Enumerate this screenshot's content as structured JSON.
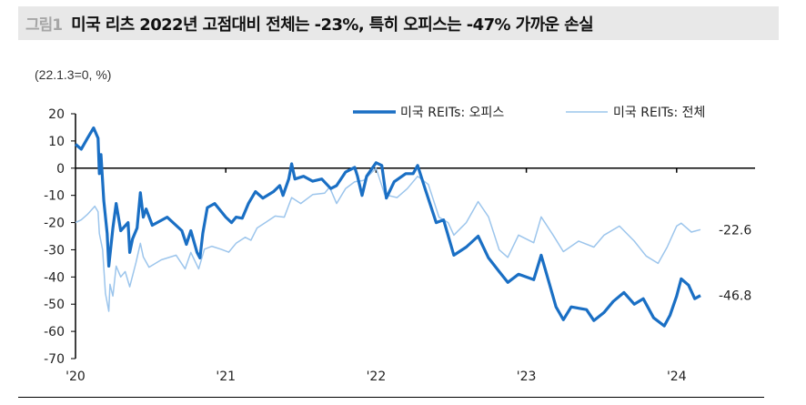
{
  "header": {
    "figure_label": "그림1",
    "title": "미국 리츠 2022년 고점대비 전체는 -23%, 특히 오피스는 -47% 가까운 손실"
  },
  "chart_data": {
    "type": "line",
    "unit_label": "(22.1.3=0,  %)",
    "ylim": [
      -70,
      20
    ],
    "yticks": [
      "20",
      "10",
      "0",
      "-10",
      "-20",
      "-30",
      "-40",
      "-50",
      "-60",
      "-70"
    ],
    "xlim": [
      "2020-01-01",
      "2024-09-15"
    ],
    "xticks": [
      {
        "date": "2020-01-01",
        "label": "'20"
      },
      {
        "date": "2021-01-01",
        "label": "'21"
      },
      {
        "date": "2022-01-01",
        "label": "'22"
      },
      {
        "date": "2023-01-01",
        "label": "'23"
      },
      {
        "date": "2024-01-01",
        "label": "'24"
      }
    ],
    "grid": false,
    "legend_position": "top-right",
    "series": [
      {
        "name": "미국 REITs: 오피스",
        "color": "#1a6fc4",
        "end_label": "-46.8",
        "points": [
          [
            "2020-01-01",
            8.8
          ],
          [
            "2020-01-15",
            7
          ],
          [
            "2020-01-30",
            11
          ],
          [
            "2020-02-14",
            14.8
          ],
          [
            "2020-02-25",
            11
          ],
          [
            "2020-02-28",
            -2
          ],
          [
            "2020-03-03",
            5
          ],
          [
            "2020-03-10",
            -12
          ],
          [
            "2020-03-18",
            -24
          ],
          [
            "2020-03-22",
            -36
          ],
          [
            "2020-04-01",
            -22
          ],
          [
            "2020-04-09",
            -13
          ],
          [
            "2020-04-20",
            -23
          ],
          [
            "2020-05-08",
            -20
          ],
          [
            "2020-05-12",
            -31
          ],
          [
            "2020-05-19",
            -26
          ],
          [
            "2020-05-30",
            -22
          ],
          [
            "2020-06-07",
            -9
          ],
          [
            "2020-06-14",
            -18
          ],
          [
            "2020-06-21",
            -15
          ],
          [
            "2020-07-06",
            -21
          ],
          [
            "2020-08-11",
            -18
          ],
          [
            "2020-09-16",
            -23
          ],
          [
            "2020-09-27",
            -28
          ],
          [
            "2020-10-08",
            -23
          ],
          [
            "2020-10-23",
            -31
          ],
          [
            "2020-10-30",
            -33
          ],
          [
            "2020-11-06",
            -24
          ],
          [
            "2020-11-17",
            -14.5
          ],
          [
            "2020-12-05",
            -13
          ],
          [
            "2021-01-01",
            -18
          ],
          [
            "2021-01-15",
            -20
          ],
          [
            "2021-01-26",
            -18
          ],
          [
            "2021-02-10",
            -18.4
          ],
          [
            "2021-02-25",
            -13
          ],
          [
            "2021-03-14",
            -8.6
          ],
          [
            "2021-04-01",
            -11
          ],
          [
            "2021-04-27",
            -8.6
          ],
          [
            "2021-05-12",
            -6.4
          ],
          [
            "2021-05-20",
            -10
          ],
          [
            "2021-06-03",
            -4
          ],
          [
            "2021-06-10",
            1.6
          ],
          [
            "2021-06-18",
            -4
          ],
          [
            "2021-07-09",
            -3
          ],
          [
            "2021-07-31",
            -4.8
          ],
          [
            "2021-08-22",
            -4
          ],
          [
            "2021-09-13",
            -7.5
          ],
          [
            "2021-09-27",
            -6.4
          ],
          [
            "2021-10-19",
            -1.4
          ],
          [
            "2021-11-10",
            0.3
          ],
          [
            "2021-11-17",
            -3
          ],
          [
            "2021-11-28",
            -10
          ],
          [
            "2021-12-09",
            -3
          ],
          [
            "2022-01-01",
            2
          ],
          [
            "2022-01-15",
            1
          ],
          [
            "2022-01-26",
            -11
          ],
          [
            "2022-02-14",
            -5
          ],
          [
            "2022-03-14",
            -2
          ],
          [
            "2022-04-01",
            -2
          ],
          [
            "2022-04-12",
            1
          ],
          [
            "2022-05-01",
            -8
          ],
          [
            "2022-05-27",
            -20
          ],
          [
            "2022-06-14",
            -19
          ],
          [
            "2022-07-09",
            -32
          ],
          [
            "2022-08-08",
            -29
          ],
          [
            "2022-09-06",
            -25
          ],
          [
            "2022-10-01",
            -33
          ],
          [
            "2022-10-27",
            -38
          ],
          [
            "2022-11-17",
            -42
          ],
          [
            "2022-12-13",
            -39
          ],
          [
            "2023-01-19",
            -41
          ],
          [
            "2023-02-06",
            -32
          ],
          [
            "2023-02-25",
            -42
          ],
          [
            "2023-03-14",
            -51
          ],
          [
            "2023-04-01",
            -55.7
          ],
          [
            "2023-04-20",
            -51
          ],
          [
            "2023-05-27",
            -52
          ],
          [
            "2023-06-14",
            -56
          ],
          [
            "2023-07-09",
            -53
          ],
          [
            "2023-07-31",
            -49
          ],
          [
            "2023-08-26",
            -45.7
          ],
          [
            "2023-09-20",
            -50
          ],
          [
            "2023-10-12",
            -48
          ],
          [
            "2023-11-06",
            -55
          ],
          [
            "2023-12-02",
            -58
          ],
          [
            "2023-12-16",
            -54
          ],
          [
            "2024-01-01",
            -47
          ],
          [
            "2024-01-12",
            -40.7
          ],
          [
            "2024-01-30",
            -43
          ],
          [
            "2024-02-14",
            -48
          ],
          [
            "2024-02-28",
            -46.8
          ]
        ]
      },
      {
        "name": "미국 REITs: 전체",
        "color": "#9cc5ec",
        "end_label": "-22.6",
        "points": [
          [
            "2020-01-01",
            -20
          ],
          [
            "2020-01-15",
            -19
          ],
          [
            "2020-01-30",
            -17
          ],
          [
            "2020-02-17",
            -14
          ],
          [
            "2020-02-25",
            -16
          ],
          [
            "2020-02-28",
            -24
          ],
          [
            "2020-03-07",
            -30
          ],
          [
            "2020-03-14",
            -46
          ],
          [
            "2020-03-22",
            -52.6
          ],
          [
            "2020-03-25",
            -42.7
          ],
          [
            "2020-04-01",
            -47
          ],
          [
            "2020-04-09",
            -36
          ],
          [
            "2020-04-20",
            -40
          ],
          [
            "2020-05-01",
            -38
          ],
          [
            "2020-05-12",
            -43.6
          ],
          [
            "2020-05-27",
            -34.8
          ],
          [
            "2020-06-07",
            -27.6
          ],
          [
            "2020-06-14",
            -32.6
          ],
          [
            "2020-06-28",
            -36.4
          ],
          [
            "2020-07-28",
            -33.7
          ],
          [
            "2020-09-02",
            -32
          ],
          [
            "2020-09-24",
            -37
          ],
          [
            "2020-10-08",
            -31
          ],
          [
            "2020-10-27",
            -37
          ],
          [
            "2020-11-10",
            -29.8
          ],
          [
            "2020-11-28",
            -28.7
          ],
          [
            "2020-12-20",
            -29.8
          ],
          [
            "2021-01-08",
            -30.9
          ],
          [
            "2021-01-26",
            -27.6
          ],
          [
            "2021-02-17",
            -25.4
          ],
          [
            "2021-03-03",
            -26.5
          ],
          [
            "2021-03-18",
            -22
          ],
          [
            "2021-04-09",
            -19.8
          ],
          [
            "2021-05-01",
            -17.6
          ],
          [
            "2021-05-23",
            -18
          ],
          [
            "2021-06-10",
            -10.8
          ],
          [
            "2021-07-02",
            -13
          ],
          [
            "2021-07-31",
            -9.7
          ],
          [
            "2021-08-29",
            -9.2
          ],
          [
            "2021-09-10",
            -7
          ],
          [
            "2021-09-27",
            -13
          ],
          [
            "2021-10-19",
            -7.5
          ],
          [
            "2021-11-10",
            -5
          ],
          [
            "2021-12-02",
            -4.5
          ],
          [
            "2022-01-01",
            0
          ],
          [
            "2022-01-22",
            -9.7
          ],
          [
            "2022-02-21",
            -10.8
          ],
          [
            "2022-03-18",
            -7.5
          ],
          [
            "2022-04-12",
            -3
          ],
          [
            "2022-05-08",
            -6
          ],
          [
            "2022-06-03",
            -18
          ],
          [
            "2022-06-25",
            -20
          ],
          [
            "2022-07-09",
            -24.6
          ],
          [
            "2022-08-08",
            -20
          ],
          [
            "2022-09-06",
            -12.3
          ],
          [
            "2022-10-01",
            -17.9
          ],
          [
            "2022-10-27",
            -30
          ],
          [
            "2022-11-17",
            -32.8
          ],
          [
            "2022-12-13",
            -24.6
          ],
          [
            "2023-01-19",
            -27.4
          ],
          [
            "2023-02-06",
            -17.9
          ],
          [
            "2023-03-07",
            -24.6
          ],
          [
            "2023-04-01",
            -30.7
          ],
          [
            "2023-05-08",
            -26.8
          ],
          [
            "2023-06-14",
            -29
          ],
          [
            "2023-07-09",
            -24.6
          ],
          [
            "2023-08-15",
            -21.3
          ],
          [
            "2023-09-20",
            -26.8
          ],
          [
            "2023-10-19",
            -32.3
          ],
          [
            "2023-11-17",
            -35
          ],
          [
            "2023-12-09",
            -29
          ],
          [
            "2024-01-01",
            -21.3
          ],
          [
            "2024-01-12",
            -20.2
          ],
          [
            "2024-02-06",
            -23.5
          ],
          [
            "2024-02-28",
            -22.6
          ]
        ]
      }
    ]
  }
}
